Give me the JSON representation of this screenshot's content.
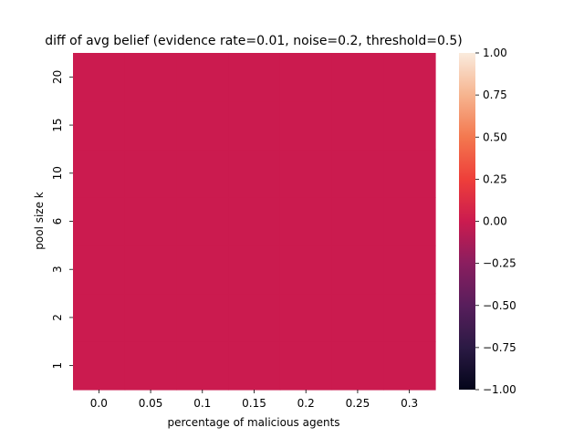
{
  "chart_data": {
    "type": "heatmap",
    "title": "diff of avg belief (evidence rate=0.01, noise=0.2, threshold=0.5)",
    "xlabel": "percentage of malicious agents",
    "ylabel": "pool size k",
    "x_categories": [
      "0.0",
      "0.05",
      "0.1",
      "0.15",
      "0.2",
      "0.25",
      "0.3"
    ],
    "y_categories": [
      "1",
      "2",
      "3",
      "6",
      "10",
      "15",
      "20"
    ],
    "values": [
      [
        0,
        0,
        0,
        0,
        0,
        0,
        0
      ],
      [
        0,
        0,
        0,
        0,
        0,
        0,
        0
      ],
      [
        0,
        0,
        0,
        0,
        0,
        0,
        0
      ],
      [
        0,
        0,
        0,
        0,
        0,
        0,
        0
      ],
      [
        0,
        0,
        0,
        0,
        0,
        0,
        0
      ],
      [
        0,
        0,
        0,
        0,
        0,
        0,
        0
      ],
      [
        0,
        0,
        0,
        0,
        0,
        0,
        0
      ]
    ],
    "colorbar": {
      "min": -1.0,
      "max": 1.0,
      "ticks": [
        "1.00",
        "0.75",
        "0.50",
        "0.25",
        "0.00",
        "−0.25",
        "−0.50",
        "−0.75",
        "−1.00"
      ],
      "colormap": "rocket"
    },
    "grid": false
  }
}
